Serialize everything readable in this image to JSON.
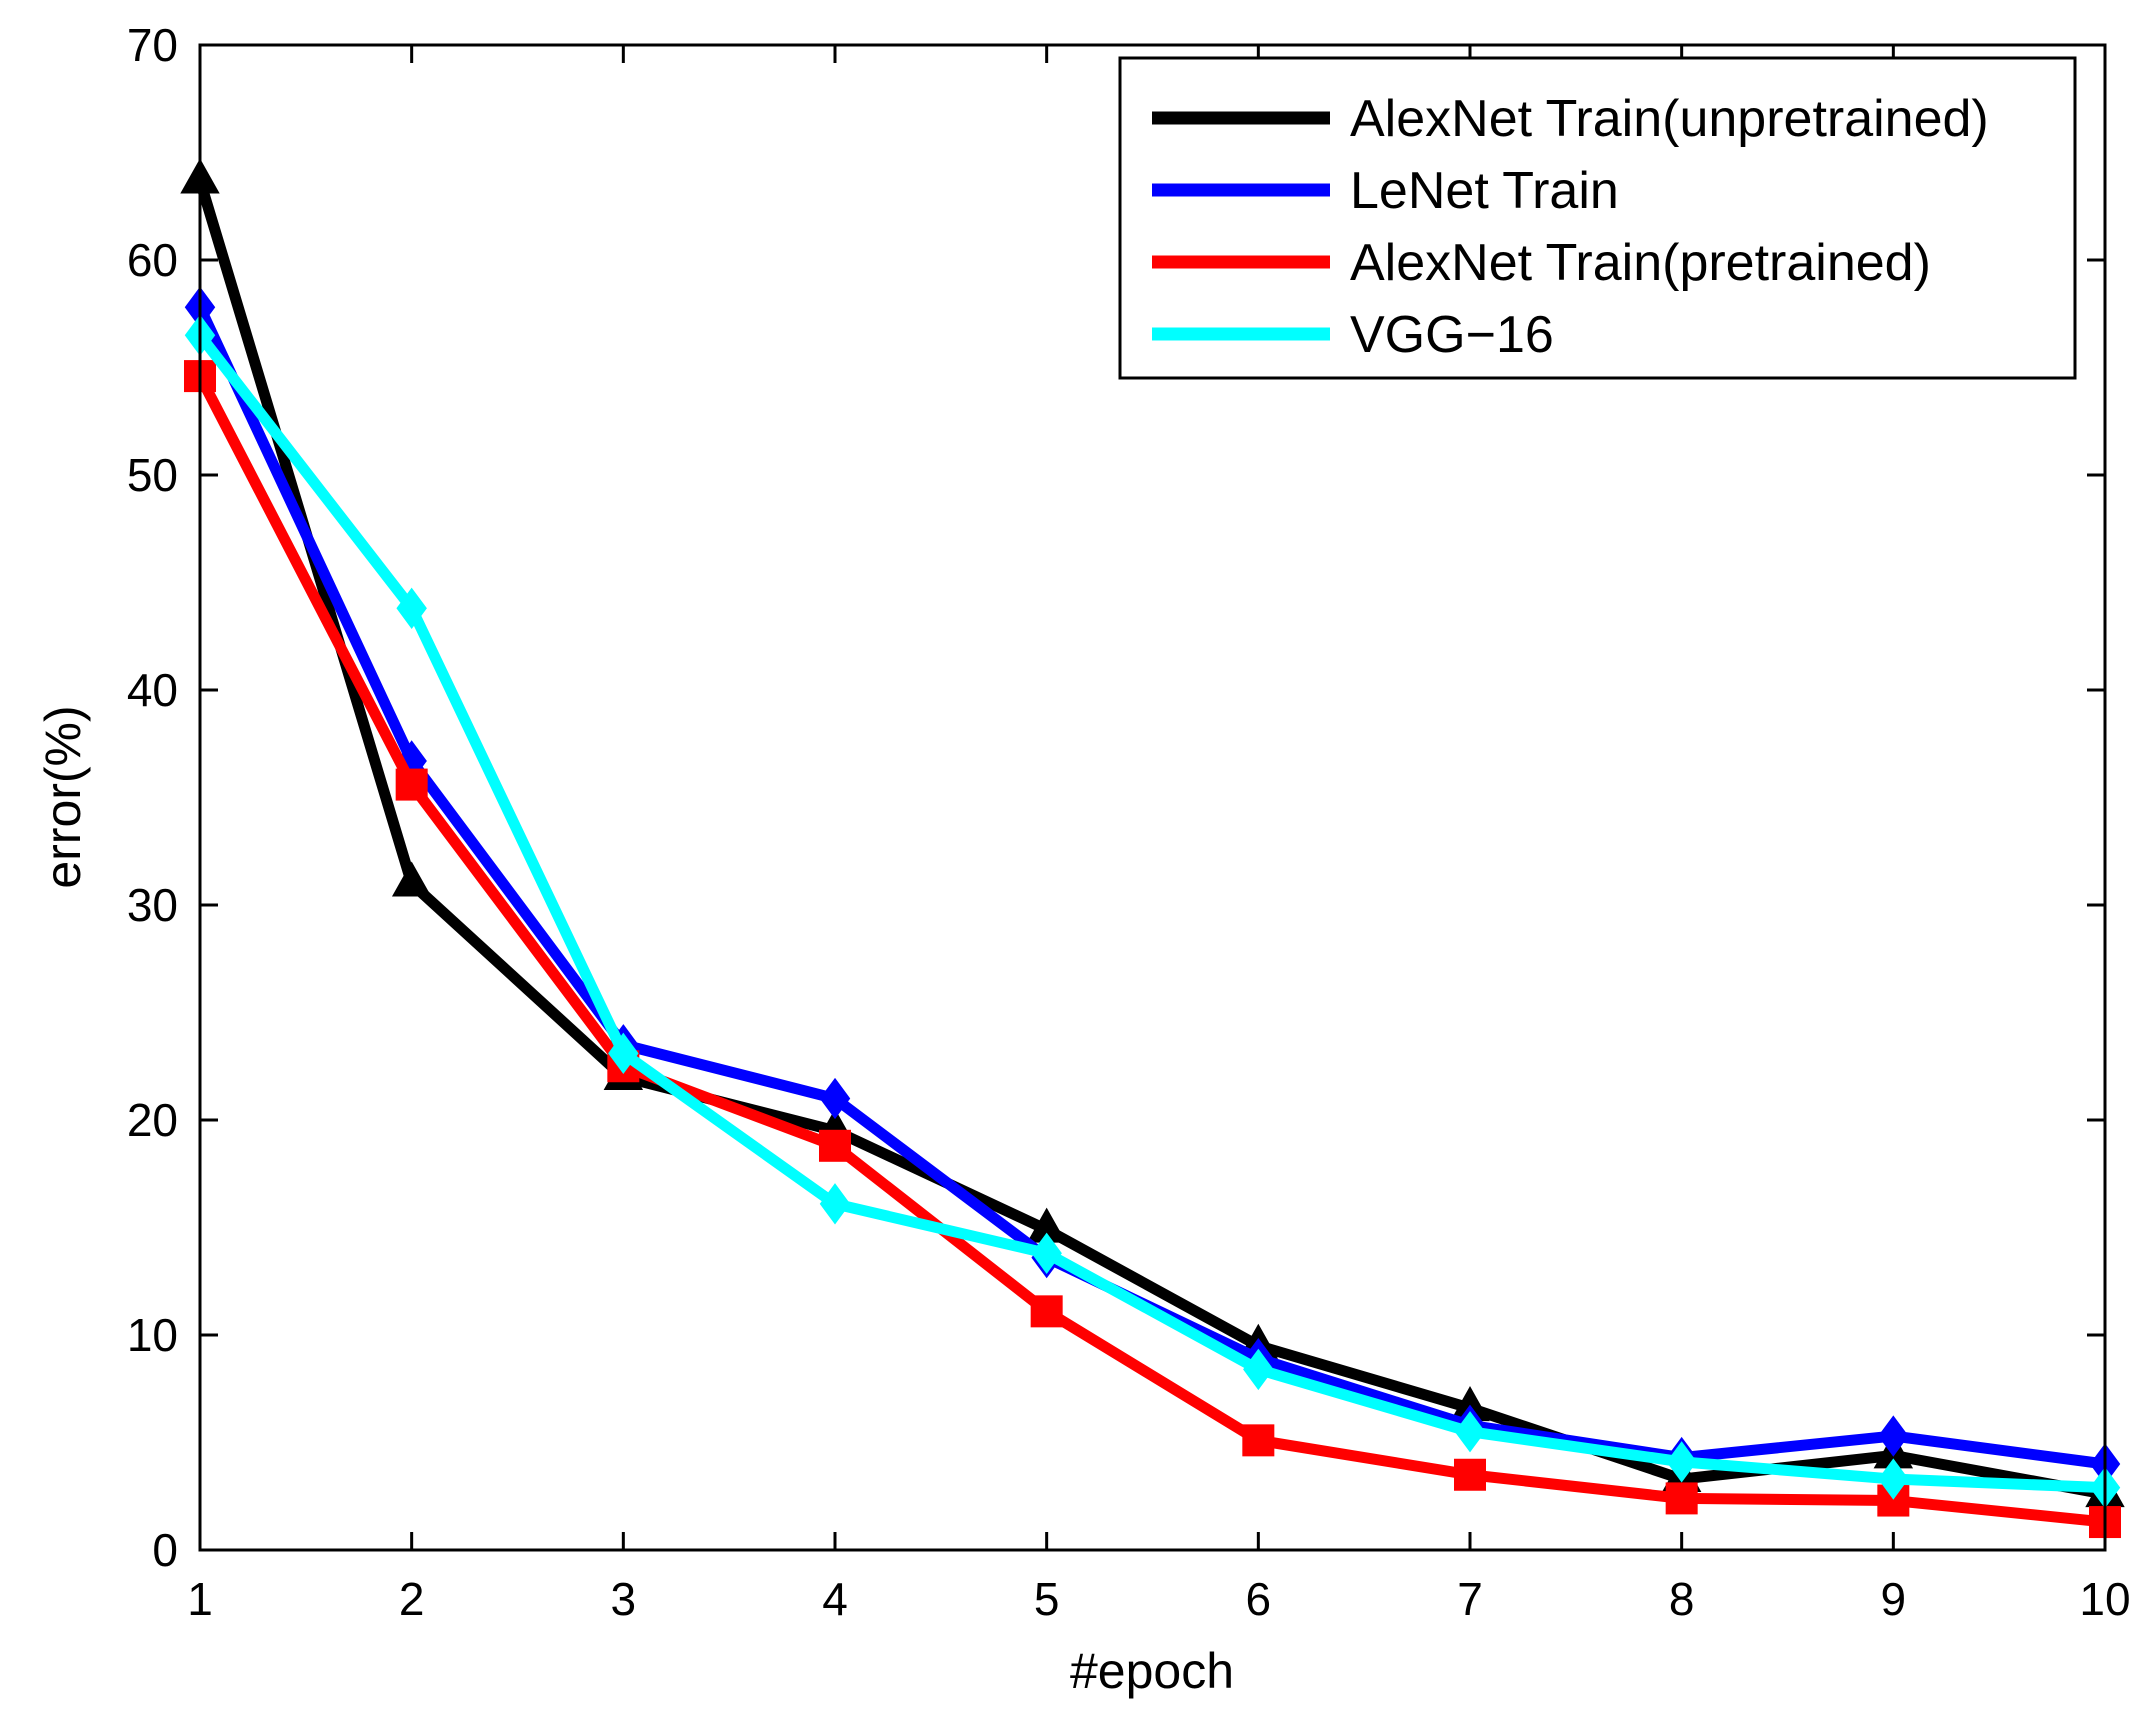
{
  "chart_data": {
    "type": "line",
    "title": "",
    "xlabel": "#epoch",
    "ylabel": "error(%)",
    "xlim": [
      1,
      10
    ],
    "ylim": [
      0,
      70
    ],
    "x": [
      1,
      2,
      3,
      4,
      5,
      6,
      7,
      8,
      9,
      10
    ],
    "xticks": [
      "1",
      "2",
      "3",
      "4",
      "5",
      "6",
      "7",
      "8",
      "9",
      "10"
    ],
    "yticks": [
      "0",
      "10",
      "20",
      "30",
      "40",
      "50",
      "60",
      "70"
    ],
    "legend_position": "top-right",
    "grid": false,
    "series": [
      {
        "name": "AlexNet Train(unpretrained)",
        "color": "#000000",
        "marker": "triangle",
        "values": [
          63.7,
          31.0,
          22.0,
          19.5,
          14.9,
          9.5,
          6.6,
          3.3,
          4.4,
          2.6
        ]
      },
      {
        "name": "LeNet Train",
        "color": "#0000ff",
        "marker": "diamond",
        "values": [
          57.8,
          36.7,
          23.5,
          21.0,
          13.6,
          8.9,
          5.8,
          4.3,
          5.3,
          4.0
        ]
      },
      {
        "name": "AlexNet Train(pretrained)",
        "color": "#ff0000",
        "marker": "square",
        "values": [
          54.6,
          35.6,
          22.5,
          18.8,
          11.1,
          5.1,
          3.5,
          2.4,
          2.3,
          1.3
        ]
      },
      {
        "name": "VGG−16",
        "color": "#00ffff",
        "marker": "diamond",
        "values": [
          56.5,
          43.8,
          23.1,
          16.1,
          13.8,
          8.4,
          5.5,
          4.1,
          3.3,
          2.9
        ]
      }
    ]
  }
}
